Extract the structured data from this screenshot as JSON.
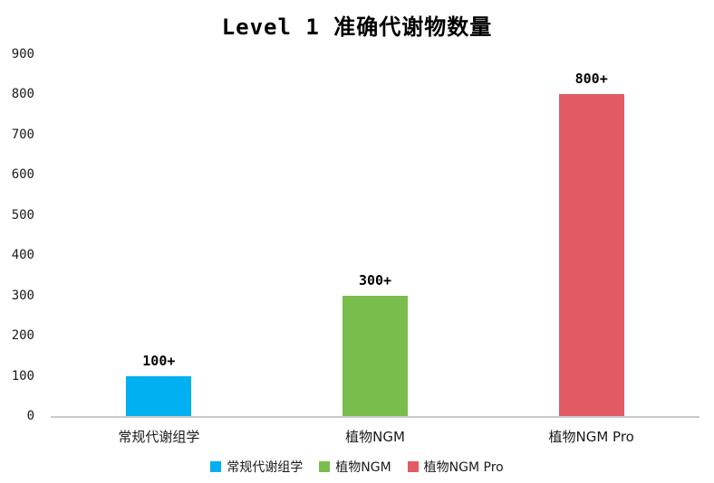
{
  "title": "Level 1 准确代谢物数量",
  "chart_data": {
    "type": "bar",
    "title": "Level 1 准确代谢物数量",
    "categories": [
      "常规代谢组学",
      "植物NGM",
      "植物NGM Pro"
    ],
    "values": [
      100,
      300,
      800
    ],
    "bar_labels": [
      "100+",
      "300+",
      "800+"
    ],
    "bar_colors": [
      "#00B0F0",
      "#79BE4C",
      "#E25A64"
    ],
    "xlabel": "",
    "ylabel": "",
    "ylim": [
      0,
      900
    ],
    "yticks": [
      0,
      100,
      200,
      300,
      400,
      500,
      600,
      700,
      800,
      900
    ],
    "grid": false,
    "legend_position": "bottom",
    "legend": [
      "常规代谢组学",
      "植物NGM",
      "植物NGM Pro"
    ],
    "axis_line_color": "#c9c9c9"
  }
}
